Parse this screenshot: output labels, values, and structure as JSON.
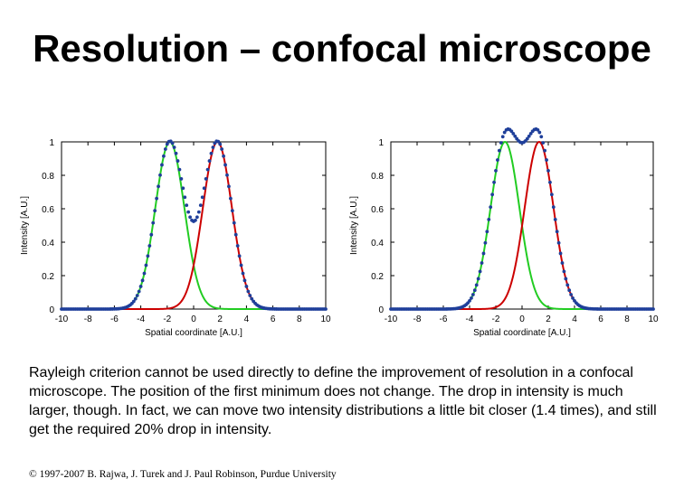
{
  "title": "Resolution – confocal microscope",
  "description": "Rayleigh criterion cannot be used directly to define the improvement of resolution in a confocal microscope. The position of the first minimum does not change. The drop in intensity is much larger, though. In fact, we can move two intensity distributions a little bit closer (1.4 times), and still get the required 20% drop in intensity.",
  "footer": "© 1997-2007 B. Rajwa, J. Turek and J. Paul Robinson, Purdue University",
  "colors": {
    "red": "#cc0000",
    "green": "#22cc22",
    "blue_dots": "#1f3f9a",
    "axis": "#000000"
  },
  "chart_data": [
    {
      "type": "line",
      "xlabel": "Spatial coordinate [A.U.]",
      "ylabel": "Intensity [A.U.]",
      "xlim": [
        -10,
        10
      ],
      "ylim": [
        0,
        1
      ],
      "xticks": [
        -10,
        -8,
        -6,
        -4,
        -2,
        0,
        2,
        4,
        6,
        8,
        10
      ],
      "yticks": [
        0,
        0.2,
        0.4,
        0.6,
        0.8,
        1
      ],
      "ytick_labels": [
        "0",
        "0.2",
        "0.4",
        "0.6",
        "0.8",
        "1"
      ],
      "grid": false,
      "series": [
        {
          "role": "green",
          "style": "solid",
          "peak_x": -1.8,
          "width": 1.1
        },
        {
          "role": "red",
          "style": "solid",
          "peak_x": 1.8,
          "width": 1.1
        },
        {
          "role": "sum",
          "style": "dotted",
          "peak_x": null,
          "width": null
        }
      ]
    },
    {
      "type": "line",
      "xlabel": "Spatial coordinate [A.U.]",
      "ylabel": "Intensity [A.U.]",
      "xlim": [
        -10,
        10
      ],
      "ylim": [
        0,
        1
      ],
      "xticks": [
        -10,
        -8,
        -6,
        -4,
        -2,
        0,
        2,
        4,
        6,
        8,
        10
      ],
      "yticks": [
        0,
        0.2,
        0.4,
        0.6,
        0.8,
        1
      ],
      "ytick_labels": [
        "0",
        "0.2",
        "0.4",
        "0.6",
        "0.8",
        "1"
      ],
      "grid": false,
      "series": [
        {
          "role": "green",
          "style": "solid",
          "peak_x": -1.3,
          "width": 1.1
        },
        {
          "role": "red",
          "style": "solid",
          "peak_x": 1.3,
          "width": 1.1
        },
        {
          "role": "sum",
          "style": "dotted",
          "peak_x": null,
          "width": null
        }
      ]
    }
  ]
}
